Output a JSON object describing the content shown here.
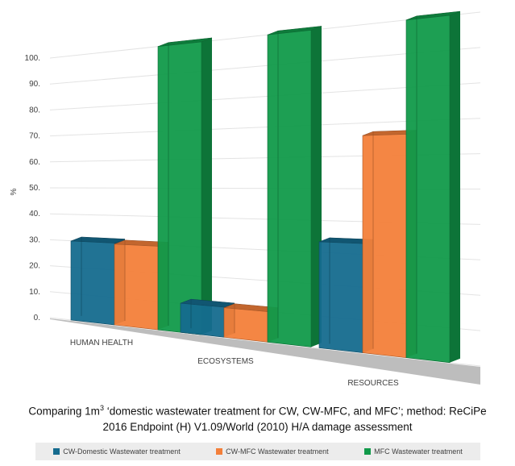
{
  "chart_data": {
    "type": "bar",
    "title": "Comparing 1m³ 'domestic wastewater treatment for CW, CW-MFC, and MFC'; method: ReCiPe 2016 Endpoint (H) V1.09/World (2010) H/A damage assessment",
    "ylabel": "%",
    "xlabel": "",
    "ylim": [
      0,
      100
    ],
    "y_ticks": [
      "0.",
      "10.",
      "20.",
      "30.",
      "40.",
      "50.",
      "60.",
      "70.",
      "80.",
      "90.",
      "100."
    ],
    "categories": [
      "HUMAN HEALTH",
      "ECOSYSTEMS",
      "RESOURCES"
    ],
    "series": [
      {
        "name": "CW-Domestic Wastewater treatment",
        "color": "#156b8e",
        "values": [
          29.9,
          10.1,
          33.3
        ]
      },
      {
        "name": "CW-MFC Wastewater treatment",
        "color": "#f37f3a",
        "values": [
          29.5,
          9.9,
          66.2
        ]
      },
      {
        "name": "MFC Wastewater treatment",
        "color": "#119a4a",
        "values": [
          100,
          100,
          100
        ]
      }
    ],
    "legend_position": "bottom",
    "grid": true
  },
  "caption": {
    "line1_before_sup": "Comparing 1m",
    "line1_sup": "3",
    "line1_after_sup": " ‘domestic wastewater treatment for CW, CW-MFC, and MFC’; method: ReCiPe",
    "line2": "2016 Endpoint (H) V1.09/World (2010) H/A damage assessment"
  }
}
